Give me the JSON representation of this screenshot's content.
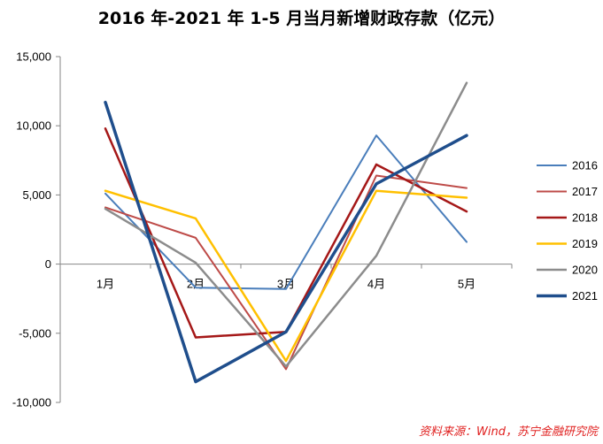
{
  "title": "2016 年-2021 年 1-5 月当月新增财政存款（亿元）",
  "source": "资料来源：Wind，苏宁金融研究院",
  "chart_data": {
    "type": "line",
    "categories": [
      "1月",
      "2月",
      "3月",
      "4月",
      "5月"
    ],
    "ylim": [
      -10000,
      15000
    ],
    "yticks": [
      -10000,
      -5000,
      0,
      5000,
      10000,
      15000
    ],
    "ytick_labels": [
      "-10,000",
      "-5,000",
      "0",
      "5,000",
      "10,000",
      "15,000"
    ],
    "grid": false,
    "legend_position": "right",
    "series": [
      {
        "name": "2016",
        "color": "#4a7ebb",
        "width": 2,
        "values": [
          5100,
          -1700,
          -1800,
          9300,
          1600
        ]
      },
      {
        "name": "2017",
        "color": "#be4b48",
        "width": 2,
        "values": [
          4100,
          1900,
          -7600,
          6400,
          5500
        ]
      },
      {
        "name": "2018",
        "color": "#a51818",
        "width": 2.5,
        "values": [
          9800,
          -5300,
          -4900,
          7200,
          3800
        ]
      },
      {
        "name": "2019",
        "color": "#ffc000",
        "width": 2.5,
        "values": [
          5300,
          3300,
          -7000,
          5300,
          4800
        ]
      },
      {
        "name": "2020",
        "color": "#8c8c8c",
        "width": 2.5,
        "values": [
          4000,
          100,
          -7400,
          600,
          13100
        ]
      },
      {
        "name": "2021",
        "color": "#1f4e8c",
        "width": 3.5,
        "values": [
          11700,
          -8500,
          -4900,
          5800,
          9300
        ]
      }
    ]
  }
}
